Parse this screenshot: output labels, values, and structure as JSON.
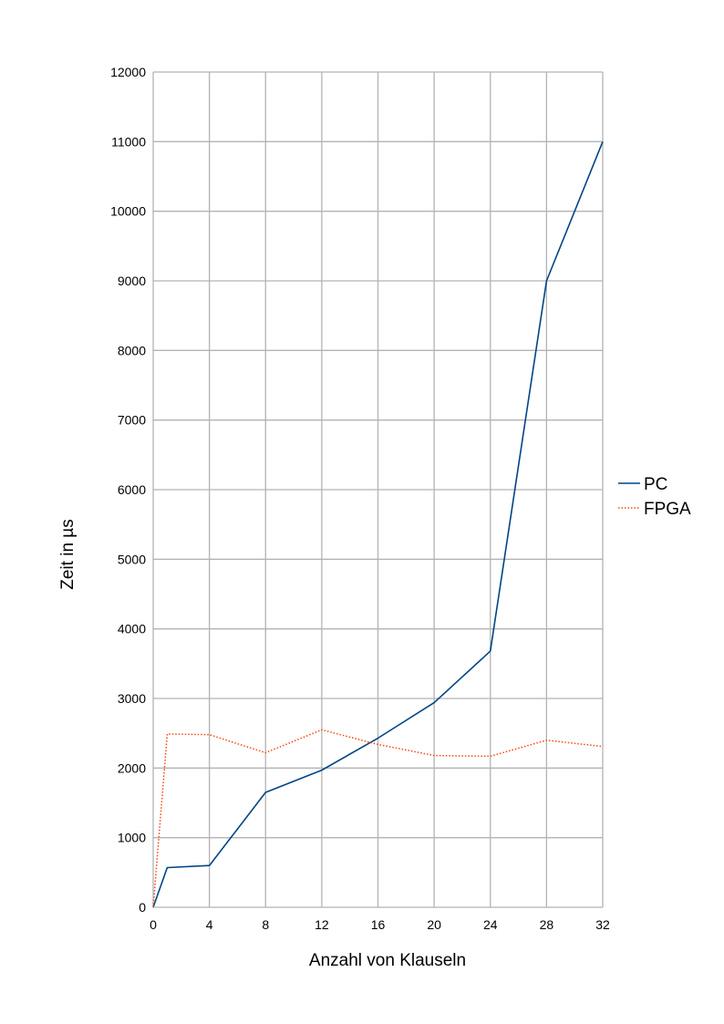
{
  "chart_data": {
    "type": "line",
    "title": "",
    "xlabel": "Anzahl von Klauseln",
    "ylabel": "Zeit in µs",
    "xlim": [
      0,
      32
    ],
    "ylim": [
      0,
      12000
    ],
    "x_ticks": [
      0,
      4,
      8,
      12,
      16,
      20,
      24,
      28,
      32
    ],
    "y_ticks": [
      0,
      1000,
      2000,
      3000,
      4000,
      5000,
      6000,
      7000,
      8000,
      9000,
      10000,
      11000,
      12000
    ],
    "grid": true,
    "legend_position": "right",
    "series": [
      {
        "name": "PC",
        "color": "#004586",
        "line_style": "solid",
        "points": [
          [
            0,
            0
          ],
          [
            1,
            570
          ],
          [
            4,
            600
          ],
          [
            8,
            1650
          ],
          [
            12,
            1970
          ],
          [
            16,
            2430
          ],
          [
            20,
            2940
          ],
          [
            24,
            3680
          ],
          [
            28,
            9000
          ],
          [
            32,
            11000
          ]
        ]
      },
      {
        "name": "FPGA",
        "color": "#ff420e",
        "line_style": "dotted",
        "points": [
          [
            0,
            0
          ],
          [
            1,
            2490
          ],
          [
            4,
            2480
          ],
          [
            8,
            2220
          ],
          [
            12,
            2550
          ],
          [
            16,
            2340
          ],
          [
            20,
            2180
          ],
          [
            24,
            2170
          ],
          [
            28,
            2400
          ],
          [
            32,
            2310
          ]
        ]
      }
    ]
  }
}
